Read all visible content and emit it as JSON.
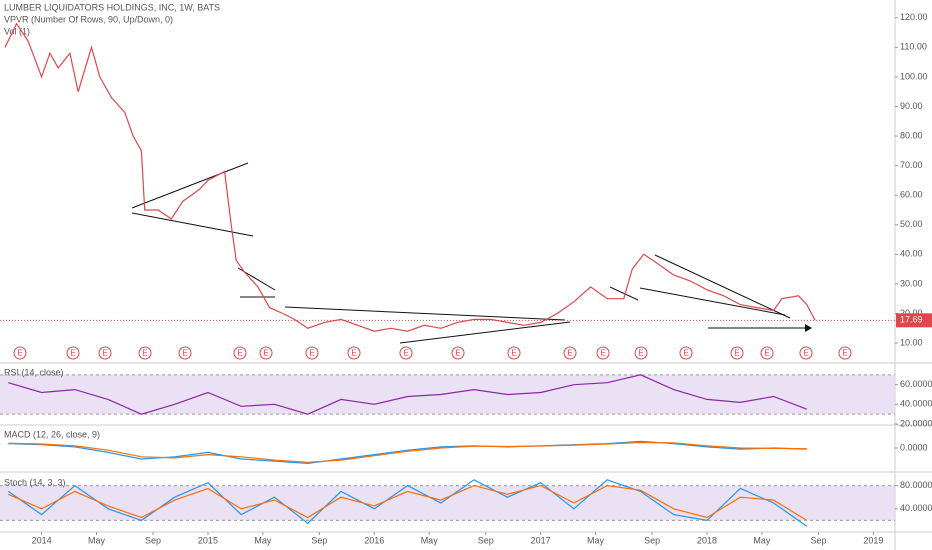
{
  "header": {
    "title": "LUMBER LIQUIDATORS HOLDINGS, INC, 1W, BATS",
    "vpvr": "VPVR (Number Of Rows, 90, Up/Down, 0)",
    "volume": "Vol (1)",
    "earnings_marker": "E"
  },
  "chart_data": [
    {
      "type": "line",
      "name": "price",
      "x": [
        2013.78,
        2013.85,
        2013.92,
        2014.0,
        2014.05,
        2014.1,
        2014.17,
        2014.22,
        2014.3,
        2014.35,
        2014.42,
        2014.5,
        2014.55,
        2014.6,
        2014.62,
        2014.7,
        2014.78,
        2014.85,
        2014.9,
        2014.95,
        2015.0,
        2015.1,
        2015.14,
        2015.17,
        2015.22,
        2015.3,
        2015.37,
        2015.45,
        2015.52,
        2015.6,
        2015.7,
        2015.8,
        2015.9,
        2016.0,
        2016.1,
        2016.2,
        2016.3,
        2016.4,
        2016.5,
        2016.6,
        2016.7,
        2016.8,
        2016.9,
        2017.0,
        2017.1,
        2017.2,
        2017.3,
        2017.4,
        2017.5,
        2017.55,
        2017.62,
        2017.7,
        2017.8,
        2017.9,
        2018.0,
        2018.1,
        2018.2,
        2018.3,
        2018.4,
        2018.45,
        2018.55,
        2018.6,
        2018.65
      ],
      "series": [
        {
          "color": "#e0474c",
          "values": [
            110,
            118,
            112,
            100,
            108,
            103,
            108,
            95,
            110,
            100,
            93,
            88,
            80,
            75,
            55,
            55,
            52,
            58,
            60,
            62,
            65,
            68,
            50,
            38,
            34,
            29,
            22,
            20,
            18,
            15,
            17,
            18,
            16,
            14,
            15,
            14,
            16,
            15,
            17,
            18,
            18,
            17,
            16,
            17,
            20,
            24,
            29,
            25,
            25,
            35,
            40,
            37,
            33,
            31,
            28,
            26,
            23,
            22,
            21,
            25,
            26,
            23,
            17.69
          ]
        }
      ],
      "xlim": [
        2013.75,
        2019.13
      ],
      "ylim": [
        3.6,
        126
      ],
      "yticks": [
        {
          "value": 10,
          "label": "10.00"
        },
        {
          "value": 20,
          "label": "20.00"
        },
        {
          "value": 30,
          "label": "30.00"
        },
        {
          "value": 40,
          "label": "40.00"
        },
        {
          "value": 50,
          "label": "50.00"
        },
        {
          "value": 60,
          "label": "60.00"
        },
        {
          "value": 70,
          "label": "70.00"
        },
        {
          "value": 80,
          "label": "80.00"
        },
        {
          "value": 90,
          "label": "90.00"
        },
        {
          "value": 100,
          "label": "100.00"
        },
        {
          "value": 110,
          "label": "110.00"
        },
        {
          "value": 120,
          "label": "120.00"
        }
      ]
    },
    {
      "type": "line",
      "title": "RSI (14, close)",
      "band": [
        30,
        70
      ],
      "band_color": "#e6d9f2",
      "x": [
        2013.8,
        2014.0,
        2014.2,
        2014.4,
        2014.6,
        2014.8,
        2015.0,
        2015.2,
        2015.4,
        2015.6,
        2015.8,
        2016.0,
        2016.2,
        2016.4,
        2016.6,
        2016.8,
        2017.0,
        2017.2,
        2017.4,
        2017.6,
        2017.8,
        2018.0,
        2018.2,
        2018.4,
        2018.6
      ],
      "series": [
        {
          "color": "#8e24aa",
          "values": [
            62,
            52,
            55,
            45,
            30,
            40,
            52,
            38,
            40,
            30,
            45,
            40,
            48,
            50,
            55,
            50,
            52,
            60,
            62,
            70,
            55,
            45,
            42,
            48,
            35
          ]
        }
      ],
      "xlim": [
        2013.75,
        2019.13
      ],
      "ylim": [
        20,
        81
      ],
      "yticks": [
        {
          "value": 60,
          "label": "60.0000"
        },
        {
          "value": 40,
          "label": "40.0000"
        },
        {
          "value": 20,
          "label": "20.0000"
        }
      ]
    },
    {
      "type": "line",
      "title": "MACD (12, 26, close, 9)",
      "x": [
        2013.8,
        2014.0,
        2014.2,
        2014.4,
        2014.6,
        2014.8,
        2015.0,
        2015.2,
        2015.4,
        2015.6,
        2015.8,
        2016.0,
        2016.2,
        2016.4,
        2016.6,
        2016.8,
        2017.0,
        2017.2,
        2017.4,
        2017.6,
        2017.8,
        2018.0,
        2018.2,
        2018.4,
        2018.6
      ],
      "series": [
        {
          "color": "#2196f3",
          "values": [
            2,
            1.5,
            0.5,
            -2,
            -5,
            -4,
            -2,
            -5,
            -6,
            -7,
            -5,
            -3,
            -1,
            0.5,
            1,
            0.5,
            1,
            1.5,
            2,
            3,
            2,
            0.5,
            -0.5,
            0,
            -0.5
          ]
        },
        {
          "color": "#ff6d00",
          "values": [
            2.2,
            1.8,
            1,
            -1,
            -4,
            -4.5,
            -3,
            -4,
            -5.5,
            -6.5,
            -5.5,
            -3.5,
            -1.5,
            0,
            0.8,
            0.7,
            0.9,
            1.3,
            1.8,
            2.5,
            2.3,
            1,
            0,
            -0.2,
            -0.3
          ]
        }
      ],
      "xlim": [
        2013.75,
        2019.13
      ],
      "ylim": [
        -10,
        10
      ],
      "yticks": [
        {
          "value": 0,
          "label": "0.0000"
        }
      ]
    },
    {
      "type": "line",
      "title": "Stoch (14, 3, 3)",
      "band": [
        20,
        80
      ],
      "band_color": "#e6d9f2",
      "x": [
        2013.8,
        2014.0,
        2014.2,
        2014.4,
        2014.6,
        2014.8,
        2015.0,
        2015.2,
        2015.4,
        2015.6,
        2015.8,
        2016.0,
        2016.2,
        2016.4,
        2016.6,
        2016.8,
        2017.0,
        2017.2,
        2017.4,
        2017.6,
        2017.8,
        2018.0,
        2018.2,
        2018.4,
        2018.6
      ],
      "series": [
        {
          "color": "#2196f3",
          "values": [
            70,
            30,
            80,
            40,
            20,
            60,
            85,
            30,
            60,
            15,
            70,
            40,
            80,
            50,
            90,
            60,
            85,
            40,
            90,
            70,
            30,
            20,
            75,
            50,
            10
          ]
        },
        {
          "color": "#ff6d00",
          "values": [
            65,
            40,
            70,
            45,
            25,
            55,
            75,
            40,
            55,
            25,
            60,
            45,
            70,
            55,
            80,
            65,
            80,
            50,
            80,
            72,
            40,
            25,
            60,
            55,
            20
          ]
        }
      ],
      "xlim": [
        2013.75,
        2019.13
      ],
      "ylim": [
        0,
        100
      ],
      "yticks": [
        {
          "value": 80,
          "label": "80.0000"
        },
        {
          "value": 40,
          "label": "40.0000"
        }
      ],
      "xticks": [
        2014,
        {
          "value": 2014.33,
          "label": "May"
        },
        {
          "value": 2014.67,
          "label": "Sep"
        },
        2015,
        {
          "value": 2015.33,
          "label": "May"
        },
        {
          "value": 2015.67,
          "label": "Sep"
        },
        2016,
        {
          "value": 2016.33,
          "label": "May"
        },
        {
          "value": 2016.67,
          "label": "Sep"
        },
        2017,
        {
          "value": 2017.33,
          "label": "May"
        },
        {
          "value": 2017.67,
          "label": "Sep"
        },
        2018,
        {
          "value": 2018.33,
          "label": "May"
        },
        {
          "value": 2018.67,
          "label": "Sep"
        },
        2019
      ]
    }
  ]
}
